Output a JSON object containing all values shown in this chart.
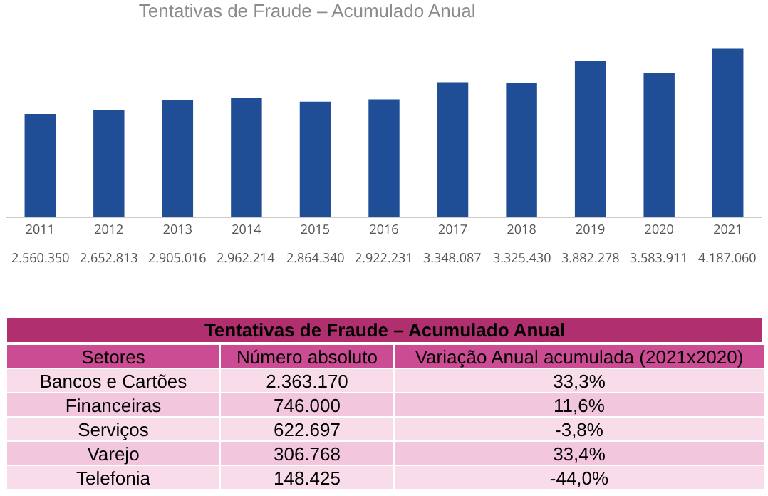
{
  "chart_data": [
    {
      "type": "bar",
      "title": "Tentativas de Fraude – Acumulado Anual",
      "categories": [
        "2011",
        "2012",
        "2013",
        "2014",
        "2015",
        "2016",
        "2017",
        "2018",
        "2019",
        "2020",
        "2021"
      ],
      "values": [
        2560350,
        2652813,
        2905016,
        2962214,
        2864340,
        2922231,
        3348087,
        3325430,
        3882278,
        3583911,
        4187060
      ],
      "value_labels": [
        "2.560.350",
        "2.652.813",
        "2.905.016",
        "2.962.214",
        "2.864.340",
        "2.922.231",
        "3.348.087",
        "3.325.430",
        "3.882.278",
        "3.583.911",
        "4.187.060"
      ],
      "color": "#1f4e96",
      "grid": false,
      "legend": false
    },
    {
      "type": "other",
      "title": "Tentativas de Fraude – Acumulado Anual",
      "xlabel": "Setores",
      "categories": [
        "Bancos e Cartões",
        "Financeiras",
        "Serviços",
        "Varejo",
        "Telefonia"
      ],
      "series": [
        {
          "name": "Número absoluto",
          "colors": [
            "#f8dcea",
            "#f2c6dd",
            "#f8dcea",
            "#f2c6dd",
            "#f8dcea"
          ],
          "values": [
            2363170,
            746000,
            622697,
            306768,
            148425
          ],
          "value_labels": [
            "2.363.170",
            "746.000",
            "622.697",
            "306.768",
            "148.425"
          ]
        },
        {
          "name": "Variação Anual acumulada (2021x2020)",
          "colors": [
            "#f8dcea",
            "#f2c6dd",
            "#f8dcea",
            "#f2c6dd",
            "#f8dcea"
          ],
          "values": [
            33.3,
            11.6,
            -3.8,
            33.4,
            -44.0
          ],
          "value_labels": [
            "33,3%",
            "11,6%",
            "-3,8%",
            "33,4%",
            "-44,0%"
          ]
        }
      ]
    }
  ]
}
